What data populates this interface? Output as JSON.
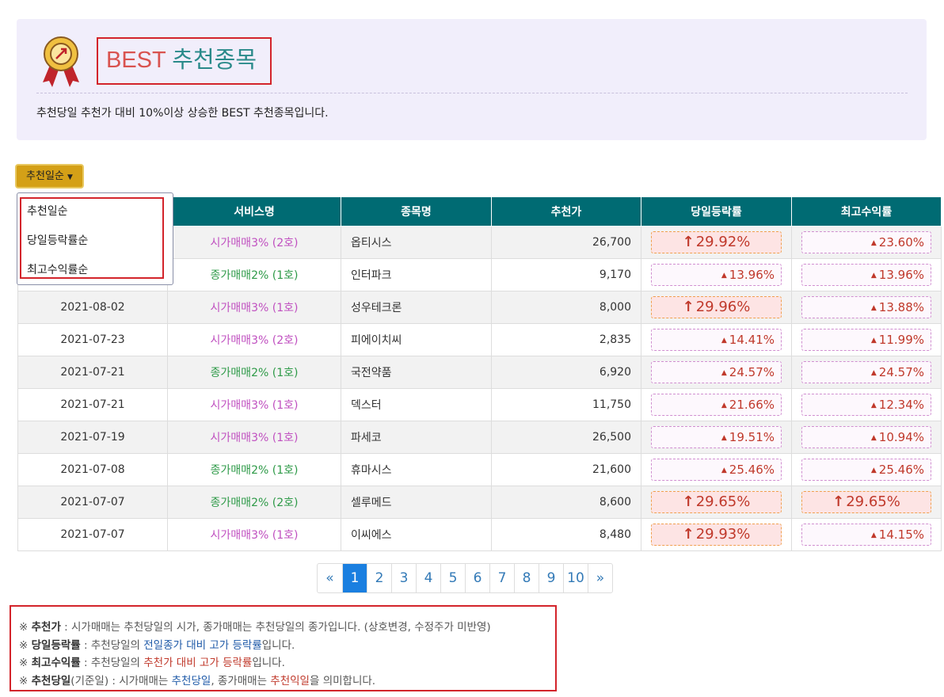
{
  "header": {
    "title_en": "BEST",
    "title_ko": "추천종목",
    "description": "추천당일 추천가 대비 10%이상 상승한 BEST 추천종목입니다."
  },
  "sort_button": "추천일순",
  "dropdown": [
    "추천일순",
    "당일등락률순",
    "최고수익률순"
  ],
  "table": {
    "columns": [
      "서비스명",
      "종목명",
      "추천가",
      "당일등락률",
      "최고수익률"
    ],
    "rows": [
      {
        "service": "시가매매3% (2호)",
        "service_color": "#c050c0",
        "stock": "옵티시스",
        "price": "26,700",
        "day_rate": "29.92%",
        "day_limit": true,
        "max_rate": "23.60%",
        "max_limit": false
      },
      {
        "service": "종가매매2% (1호)",
        "service_color": "#2e9a48",
        "stock": "인터파크",
        "price": "9,170",
        "day_rate": "13.96%",
        "day_limit": false,
        "max_rate": "13.96%",
        "max_limit": false
      },
      {
        "date": "2021-08-02",
        "service": "시가매매3% (1호)",
        "service_color": "#c050c0",
        "stock": "성우테크론",
        "price": "8,000",
        "day_rate": "29.96%",
        "day_limit": true,
        "max_rate": "13.88%",
        "max_limit": false
      },
      {
        "date": "2021-07-23",
        "service": "시가매매3% (2호)",
        "service_color": "#c050c0",
        "stock": "피에이치씨",
        "price": "2,835",
        "day_rate": "14.41%",
        "day_limit": false,
        "max_rate": "11.99%",
        "max_limit": false
      },
      {
        "date": "2021-07-21",
        "service": "종가매매2% (1호)",
        "service_color": "#2e9a48",
        "stock": "국전약품",
        "price": "6,920",
        "day_rate": "24.57%",
        "day_limit": false,
        "max_rate": "24.57%",
        "max_limit": false
      },
      {
        "date": "2021-07-21",
        "service": "시가매매3% (1호)",
        "service_color": "#c050c0",
        "stock": "덱스터",
        "price": "11,750",
        "day_rate": "21.66%",
        "day_limit": false,
        "max_rate": "12.34%",
        "max_limit": false
      },
      {
        "date": "2021-07-19",
        "service": "시가매매3% (1호)",
        "service_color": "#c050c0",
        "stock": "파세코",
        "price": "26,500",
        "day_rate": "19.51%",
        "day_limit": false,
        "max_rate": "10.94%",
        "max_limit": false
      },
      {
        "date": "2021-07-08",
        "service": "종가매매2% (1호)",
        "service_color": "#2e9a48",
        "stock": "휴마시스",
        "price": "21,600",
        "day_rate": "25.46%",
        "day_limit": false,
        "max_rate": "25.46%",
        "max_limit": false
      },
      {
        "date": "2021-07-07",
        "service": "종가매매2% (2호)",
        "service_color": "#2e9a48",
        "stock": "셀루메드",
        "price": "8,600",
        "day_rate": "29.65%",
        "day_limit": true,
        "max_rate": "29.65%",
        "max_limit": true
      },
      {
        "date": "2021-07-07",
        "service": "시가매매3% (1호)",
        "service_color": "#c050c0",
        "stock": "이씨에스",
        "price": "8,480",
        "day_rate": "29.93%",
        "day_limit": true,
        "max_rate": "14.15%",
        "max_limit": false
      }
    ]
  },
  "pagination": {
    "pages": [
      "«",
      "1",
      "2",
      "3",
      "4",
      "5",
      "6",
      "7",
      "8",
      "9",
      "10",
      "»"
    ],
    "active": 1
  },
  "notes": [
    {
      "parts": [
        {
          "text": "※ "
        },
        {
          "text": "추천가",
          "style": "b"
        },
        {
          "text": " : 시가매매는 추천당일의 시가, 종가매매는 추천당일의 종가입니다. (상호변경, 수정주가 미반영)"
        }
      ]
    },
    {
      "parts": [
        {
          "text": "※ "
        },
        {
          "text": "당일등락률",
          "style": "b"
        },
        {
          "text": " : 추천당일의 "
        },
        {
          "text": "전일종가 대비 고가 등락률",
          "style": "blue"
        },
        {
          "text": "입니다."
        }
      ]
    },
    {
      "parts": [
        {
          "text": "※ "
        },
        {
          "text": "최고수익률",
          "style": "b"
        },
        {
          "text": " : 추천당일의 "
        },
        {
          "text": "추천가 대비 고가 등락률",
          "style": "red"
        },
        {
          "text": "입니다."
        }
      ]
    },
    {
      "parts": [
        {
          "text": "※ "
        },
        {
          "text": "추천당일",
          "style": "b"
        },
        {
          "text": "(기준일) : 시가매매는 "
        },
        {
          "text": "추천당일",
          "style": "blue"
        },
        {
          "text": ", 종가매매는 "
        },
        {
          "text": "추천익일",
          "style": "red"
        },
        {
          "text": "을 의미합니다."
        }
      ]
    }
  ]
}
